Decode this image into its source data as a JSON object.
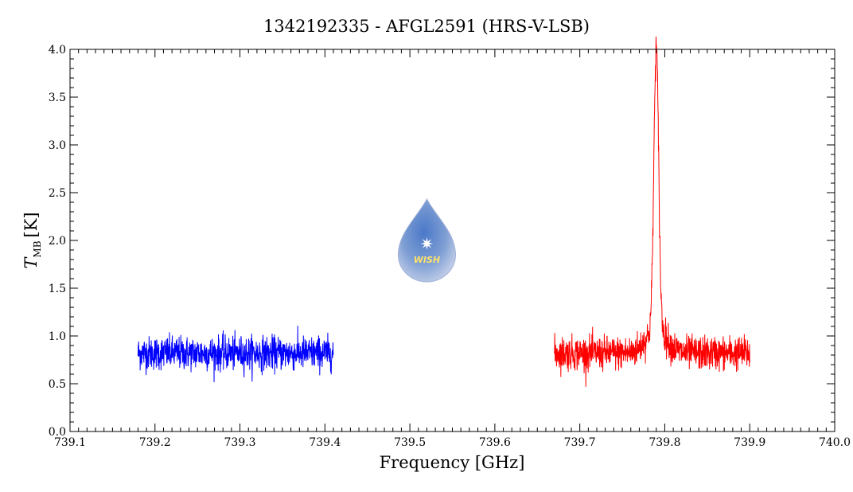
{
  "chart_data": {
    "type": "line",
    "title": "1342192335 - AFGL2591 (HRS-V-LSB)",
    "xlabel": "Frequency [GHz]",
    "ylabel_main": "T",
    "ylabel_sub": "MB",
    "ylabel_unit": "[K]",
    "xlim": [
      739.1,
      740.0
    ],
    "ylim": [
      0.0,
      4.0
    ],
    "x_ticks": [
      "739.1",
      "739.2",
      "739.3",
      "739.4",
      "739.5",
      "739.6",
      "739.7",
      "739.8",
      "739.9",
      "740.0"
    ],
    "y_ticks": [
      "0.0",
      "0.5",
      "1.0",
      "1.5",
      "2.0",
      "2.5",
      "3.0",
      "3.5",
      "4.0"
    ],
    "grid": false,
    "legend": "none",
    "series": [
      {
        "color": "#0000ff",
        "x_range": [
          739.18,
          739.41
        ],
        "baseline": 0.82,
        "noise_amplitude": 0.25,
        "line_center": null,
        "line_peak": null
      },
      {
        "color": "#ff0000",
        "x_range": [
          739.67,
          739.9
        ],
        "baseline": 0.82,
        "noise_amplitude": 0.25,
        "line_center": 739.79,
        "line_peak": 3.78
      }
    ]
  },
  "logo": {
    "text": "WISH",
    "x": 739.52,
    "y": 1.9
  }
}
